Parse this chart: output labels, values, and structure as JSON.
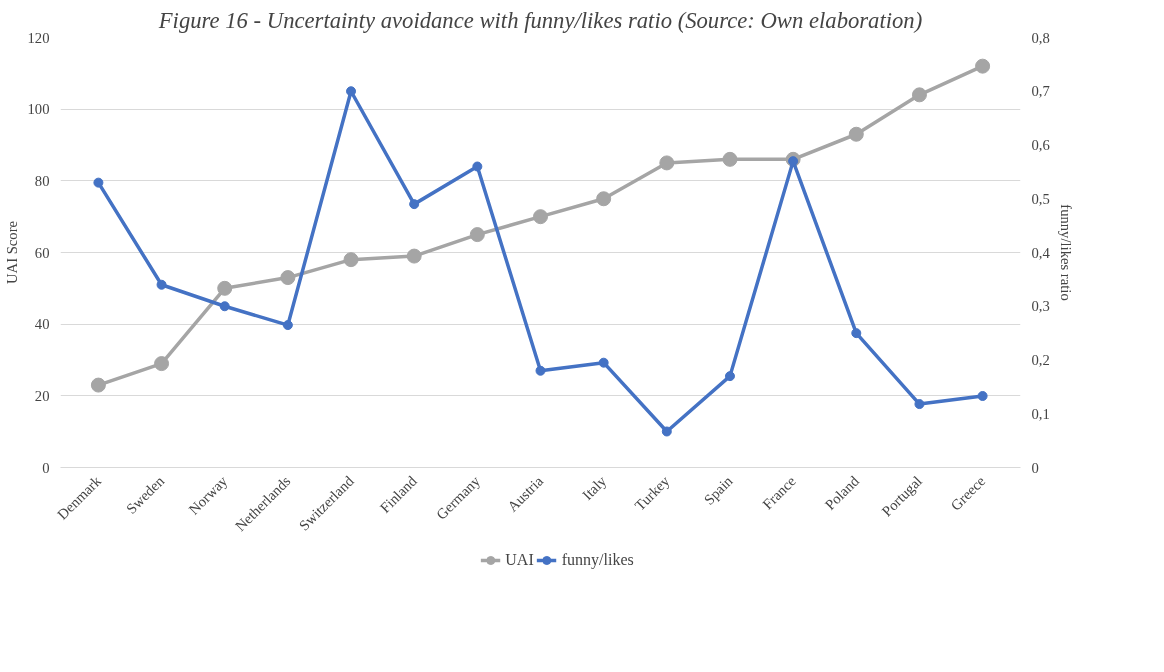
{
  "chart_data": {
    "type": "line",
    "title": "Figure 16 - Uncertainty avoidance with funny/likes ratio (Source: Own elaboration)",
    "categories": [
      "Denmark",
      "Sweden",
      "Norway",
      "Netherlands",
      "Switzerland",
      "Finland",
      "Germany",
      "Austria",
      "Italy",
      "Turkey",
      "Spain",
      "France",
      "Poland",
      "Portugal",
      "Greece"
    ],
    "series": [
      {
        "name": "UAI",
        "color": "#a5a5a5",
        "values": [
          23,
          29,
          50,
          53,
          58,
          59,
          65,
          70,
          75,
          85,
          86,
          86,
          93,
          104,
          112
        ]
      },
      {
        "name": "funny/likes",
        "color": "#4472c4",
        "axis": "y2",
        "values": [
          0.53,
          0.34,
          0.3,
          0.265,
          0.7,
          0.49,
          0.56,
          0.18,
          0.195,
          0.067,
          0.17,
          0.57,
          0.25,
          0.118,
          0.133
        ]
      }
    ],
    "ylabel": "UAI Score",
    "y2label": "funny/likes ratio",
    "ylim": [
      0,
      120
    ],
    "yticks": [
      0,
      20,
      40,
      60,
      80,
      100,
      120
    ],
    "y2lim": [
      0,
      0.8
    ],
    "y2ticks": [
      {
        "value": 0,
        "label": "0"
      },
      {
        "value": 0.1,
        "label": "0,1"
      },
      {
        "value": 0.2,
        "label": "0,2"
      },
      {
        "value": 0.3,
        "label": "0,3"
      },
      {
        "value": 0.4,
        "label": "0,4"
      },
      {
        "value": 0.5,
        "label": "0,5"
      },
      {
        "value": 0.6,
        "label": "0,6"
      },
      {
        "value": 0.7,
        "label": "0,7"
      },
      {
        "value": 0.8,
        "label": "0,8"
      }
    ],
    "grid": "y",
    "legend": "bottom",
    "marker": "circle",
    "line_style": "solid"
  }
}
